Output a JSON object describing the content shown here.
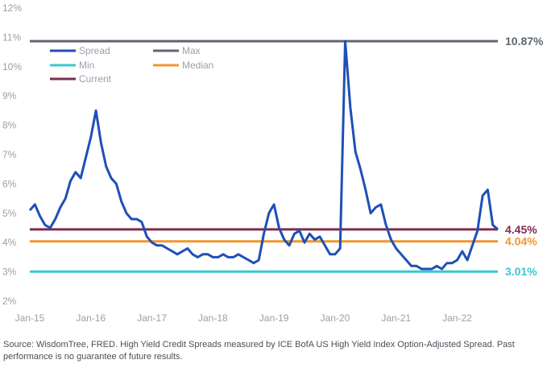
{
  "chart_data": {
    "type": "line",
    "ylim": [
      2,
      12
    ],
    "yticks": [
      "2%",
      "3%",
      "4%",
      "5%",
      "6%",
      "7%",
      "8%",
      "9%",
      "10%",
      "11%",
      "12%"
    ],
    "xticks": [
      "Jan-15",
      "Jan-16",
      "Jan-17",
      "Jan-18",
      "Jan-19",
      "Jan-20",
      "Jan-21",
      "Jan-22"
    ],
    "xrange": [
      "2015-01",
      "2022-09"
    ],
    "grid": false,
    "legend_position": "top-left",
    "series": [
      {
        "name": "Spread",
        "color": "#1f4fb8",
        "points": [
          [
            "2015-01",
            5.1
          ],
          [
            "2015-02",
            5.3
          ],
          [
            "2015-03",
            4.9
          ],
          [
            "2015-04",
            4.6
          ],
          [
            "2015-05",
            4.5
          ],
          [
            "2015-06",
            4.8
          ],
          [
            "2015-07",
            5.2
          ],
          [
            "2015-08",
            5.5
          ],
          [
            "2015-09",
            6.1
          ],
          [
            "2015-10",
            6.4
          ],
          [
            "2015-11",
            6.2
          ],
          [
            "2015-12",
            6.9
          ],
          [
            "2016-01",
            7.6
          ],
          [
            "2016-02",
            8.5
          ],
          [
            "2016-03",
            7.4
          ],
          [
            "2016-04",
            6.6
          ],
          [
            "2016-05",
            6.2
          ],
          [
            "2016-06",
            6.0
          ],
          [
            "2016-07",
            5.4
          ],
          [
            "2016-08",
            5.0
          ],
          [
            "2016-09",
            4.8
          ],
          [
            "2016-10",
            4.8
          ],
          [
            "2016-11",
            4.7
          ],
          [
            "2016-12",
            4.2
          ],
          [
            "2017-01",
            4.0
          ],
          [
            "2017-02",
            3.9
          ],
          [
            "2017-03",
            3.9
          ],
          [
            "2017-04",
            3.8
          ],
          [
            "2017-05",
            3.7
          ],
          [
            "2017-06",
            3.6
          ],
          [
            "2017-07",
            3.7
          ],
          [
            "2017-08",
            3.8
          ],
          [
            "2017-09",
            3.6
          ],
          [
            "2017-10",
            3.5
          ],
          [
            "2017-11",
            3.6
          ],
          [
            "2017-12",
            3.6
          ],
          [
            "2018-01",
            3.5
          ],
          [
            "2018-02",
            3.5
          ],
          [
            "2018-03",
            3.6
          ],
          [
            "2018-04",
            3.5
          ],
          [
            "2018-05",
            3.5
          ],
          [
            "2018-06",
            3.6
          ],
          [
            "2018-07",
            3.5
          ],
          [
            "2018-08",
            3.4
          ],
          [
            "2018-09",
            3.3
          ],
          [
            "2018-10",
            3.4
          ],
          [
            "2018-11",
            4.3
          ],
          [
            "2018-12",
            5.0
          ],
          [
            "2019-01",
            5.3
          ],
          [
            "2019-02",
            4.5
          ],
          [
            "2019-03",
            4.1
          ],
          [
            "2019-04",
            3.9
          ],
          [
            "2019-05",
            4.3
          ],
          [
            "2019-06",
            4.4
          ],
          [
            "2019-07",
            4.0
          ],
          [
            "2019-08",
            4.3
          ],
          [
            "2019-09",
            4.1
          ],
          [
            "2019-10",
            4.2
          ],
          [
            "2019-11",
            3.9
          ],
          [
            "2019-12",
            3.6
          ],
          [
            "2020-01",
            3.6
          ],
          [
            "2020-02",
            3.8
          ],
          [
            "2020-03",
            10.87
          ],
          [
            "2020-04",
            8.6
          ],
          [
            "2020-05",
            7.1
          ],
          [
            "2020-06",
            6.5
          ],
          [
            "2020-07",
            5.8
          ],
          [
            "2020-08",
            5.0
          ],
          [
            "2020-09",
            5.2
          ],
          [
            "2020-10",
            5.3
          ],
          [
            "2020-11",
            4.6
          ],
          [
            "2020-12",
            4.1
          ],
          [
            "2021-01",
            3.8
          ],
          [
            "2021-02",
            3.6
          ],
          [
            "2021-03",
            3.4
          ],
          [
            "2021-04",
            3.2
          ],
          [
            "2021-05",
            3.2
          ],
          [
            "2021-06",
            3.1
          ],
          [
            "2021-07",
            3.1
          ],
          [
            "2021-08",
            3.1
          ],
          [
            "2021-09",
            3.2
          ],
          [
            "2021-10",
            3.1
          ],
          [
            "2021-11",
            3.3
          ],
          [
            "2021-12",
            3.3
          ],
          [
            "2022-01",
            3.4
          ],
          [
            "2022-02",
            3.7
          ],
          [
            "2022-03",
            3.4
          ],
          [
            "2022-04",
            3.9
          ],
          [
            "2022-05",
            4.4
          ],
          [
            "2022-06",
            5.6
          ],
          [
            "2022-07",
            5.8
          ],
          [
            "2022-08",
            4.6
          ],
          [
            "2022-09",
            4.45
          ]
        ]
      }
    ],
    "reference_lines": [
      {
        "name": "Max",
        "value": 10.87,
        "label": "10.87%",
        "color": "#5f6670"
      },
      {
        "name": "Min",
        "value": 3.01,
        "label": "3.01%",
        "color": "#3cc6d0"
      },
      {
        "name": "Median",
        "value": 4.04,
        "label": "4.04%",
        "color": "#f2962f"
      },
      {
        "name": "Current",
        "value": 4.45,
        "label": "4.45%",
        "color": "#7b2d4e"
      }
    ],
    "legend": [
      {
        "name": "Spread",
        "color": "#1f4fb8"
      },
      {
        "name": "Max",
        "color": "#5f6670"
      },
      {
        "name": "Min",
        "color": "#3cc6d0"
      },
      {
        "name": "Median",
        "color": "#f2962f"
      },
      {
        "name": "Current",
        "color": "#7b2d4e"
      }
    ]
  },
  "source_note": "Source: WisdomTree, FRED. High Yield Credit Spreads measured by ICE BofA US High Yield Index Option-Adjusted Spread. Past performance is no guarantee of future results."
}
